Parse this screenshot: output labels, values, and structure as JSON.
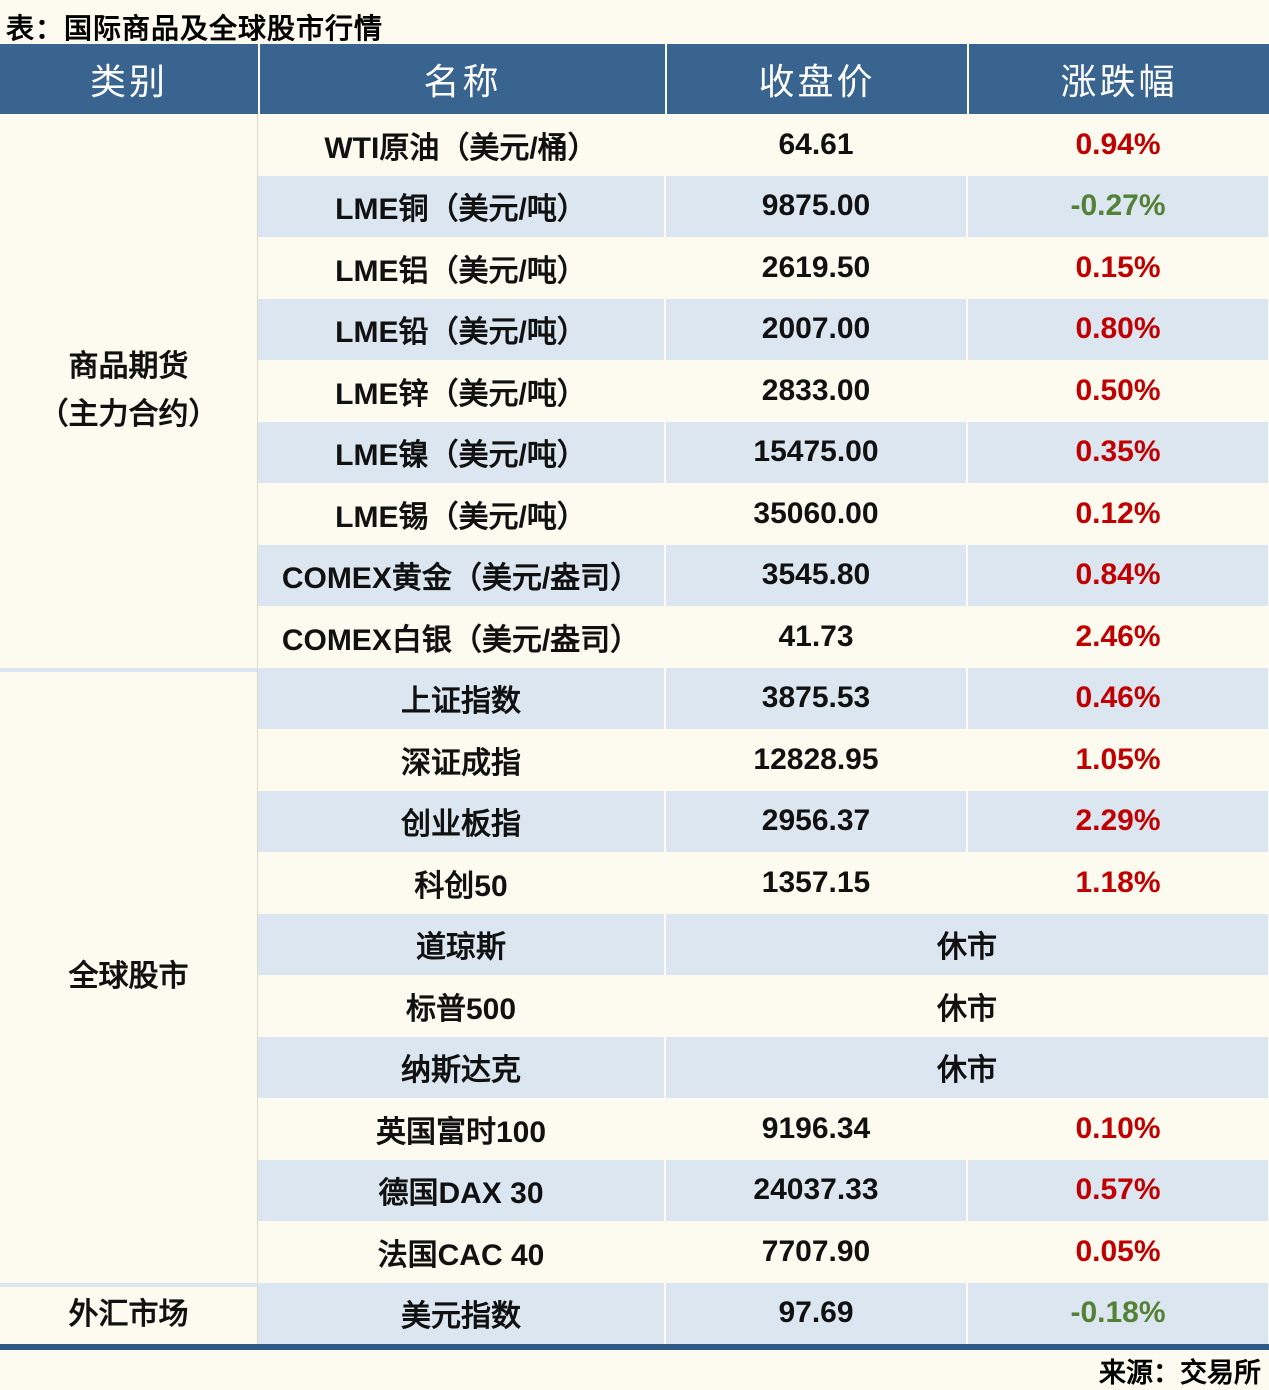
{
  "title": "表：国际商品及全球股市行情",
  "source": "来源：交易所",
  "colors": {
    "header_bg": "#39648F",
    "header_text": "#FFFFFF",
    "stripe_blue": "#DCE6F1",
    "paper_cream": "#FDFBF0",
    "up_red": "#C00000",
    "down_green": "#538135",
    "bottom_border_blue": "#2F5A87"
  },
  "chart_data": {
    "type": "table",
    "title": "表：国际商品及全球股市行情",
    "columns": [
      "类别",
      "名称",
      "收盘价",
      "涨跌幅"
    ],
    "closed_label": "休市",
    "source": "来源：交易所",
    "groups": [
      {
        "category_lines": [
          "商品期货",
          "（主力合约）"
        ],
        "rows": [
          {
            "name": "WTI原油（美元/桶）",
            "close": "64.61",
            "change": "0.94%",
            "direction": "up"
          },
          {
            "name": "LME铜（美元/吨）",
            "close": "9875.00",
            "change": "-0.27%",
            "direction": "down"
          },
          {
            "name": "LME铝（美元/吨）",
            "close": "2619.50",
            "change": "0.15%",
            "direction": "up"
          },
          {
            "name": "LME铅（美元/吨）",
            "close": "2007.00",
            "change": "0.80%",
            "direction": "up"
          },
          {
            "name": "LME锌（美元/吨）",
            "close": "2833.00",
            "change": "0.50%",
            "direction": "up"
          },
          {
            "name": "LME镍（美元/吨）",
            "close": "15475.00",
            "change": "0.35%",
            "direction": "up"
          },
          {
            "name": "LME锡（美元/吨）",
            "close": "35060.00",
            "change": "0.12%",
            "direction": "up"
          },
          {
            "name": "COMEX黄金（美元/盎司）",
            "close": "3545.80",
            "change": "0.84%",
            "direction": "up"
          },
          {
            "name": "COMEX白银（美元/盎司）",
            "close": "41.73",
            "change": "2.46%",
            "direction": "up"
          }
        ]
      },
      {
        "category_lines": [
          "全球股市"
        ],
        "rows": [
          {
            "name": "上证指数",
            "close": "3875.53",
            "change": "0.46%",
            "direction": "up"
          },
          {
            "name": "深证成指",
            "close": "12828.95",
            "change": "1.05%",
            "direction": "up"
          },
          {
            "name": "创业板指",
            "close": "2956.37",
            "change": "2.29%",
            "direction": "up"
          },
          {
            "name": "科创50",
            "close": "1357.15",
            "change": "1.18%",
            "direction": "up"
          },
          {
            "name": "道琼斯",
            "closed": true
          },
          {
            "name": "标普500",
            "closed": true
          },
          {
            "name": "纳斯达克",
            "closed": true
          },
          {
            "name": "英国富时100",
            "close": "9196.34",
            "change": "0.10%",
            "direction": "up"
          },
          {
            "name": "德国DAX 30",
            "close": "24037.33",
            "change": "0.57%",
            "direction": "up"
          },
          {
            "name": "法国CAC 40",
            "close": "7707.90",
            "change": "0.05%",
            "direction": "up"
          }
        ]
      },
      {
        "category_lines": [
          "外汇市场"
        ],
        "rows": [
          {
            "name": "美元指数",
            "close": "97.69",
            "change": "-0.18%",
            "direction": "down"
          }
        ]
      }
    ]
  }
}
